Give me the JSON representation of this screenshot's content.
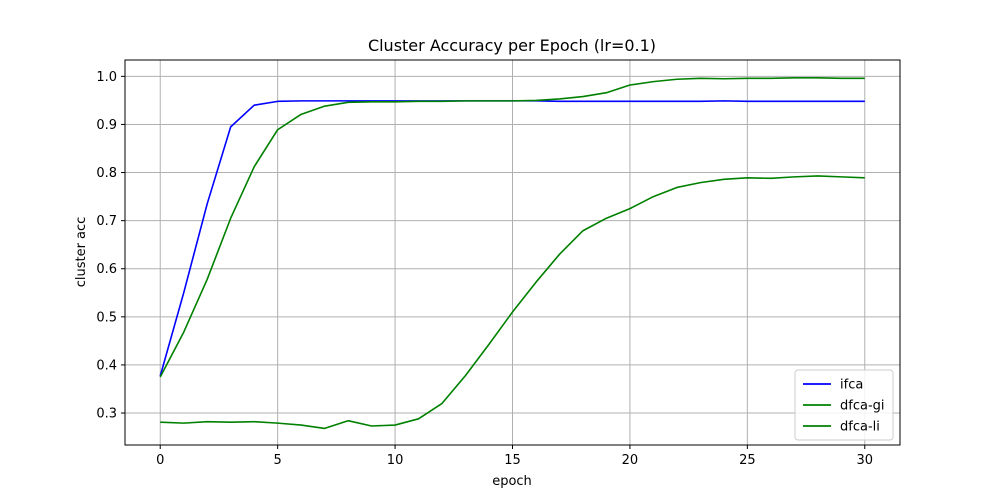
{
  "chart_data": {
    "type": "line",
    "title": "Cluster Accuracy per Epoch (lr=0.1)",
    "xlabel": "epoch",
    "ylabel": "cluster acc",
    "xlim": [
      -1.5,
      31.5
    ],
    "ylim": [
      0.2335,
      1.034
    ],
    "xticks": [
      0,
      5,
      10,
      15,
      20,
      25,
      30
    ],
    "yticks": [
      0.3,
      0.4,
      0.5,
      0.6,
      0.7,
      0.8,
      0.9,
      1.0
    ],
    "ytick_labels": [
      "0.3",
      "0.4",
      "0.5",
      "0.6",
      "0.7",
      "0.8",
      "0.9",
      "1.0"
    ],
    "grid": true,
    "legend_position": "lower-right",
    "x": [
      0,
      1,
      2,
      3,
      4,
      5,
      6,
      7,
      8,
      9,
      10,
      11,
      12,
      13,
      14,
      15,
      16,
      17,
      18,
      19,
      20,
      21,
      22,
      23,
      24,
      25,
      26,
      27,
      28,
      29,
      30
    ],
    "series": [
      {
        "name": "ifca",
        "color": "#0000ff",
        "values": [
          0.377,
          0.55,
          0.735,
          0.895,
          0.94,
          0.948,
          0.949,
          0.949,
          0.949,
          0.949,
          0.949,
          0.949,
          0.949,
          0.949,
          0.949,
          0.949,
          0.949,
          0.948,
          0.948,
          0.948,
          0.948,
          0.948,
          0.948,
          0.948,
          0.949,
          0.948,
          0.948,
          0.948,
          0.948,
          0.948,
          0.948
        ]
      },
      {
        "name": "dfca-gi",
        "color": "#008000",
        "values": [
          0.375,
          0.468,
          0.578,
          0.705,
          0.812,
          0.889,
          0.921,
          0.938,
          0.946,
          0.947,
          0.947,
          0.948,
          0.948,
          0.949,
          0.949,
          0.949,
          0.95,
          0.953,
          0.958,
          0.966,
          0.982,
          0.989,
          0.994,
          0.996,
          0.995,
          0.996,
          0.996,
          0.997,
          0.997,
          0.996,
          0.996
        ]
      },
      {
        "name": "dfca-li",
        "color": "#008000",
        "values": [
          0.281,
          0.279,
          0.282,
          0.281,
          0.282,
          0.279,
          0.275,
          0.268,
          0.284,
          0.273,
          0.275,
          0.288,
          0.32,
          0.378,
          0.443,
          0.51,
          0.572,
          0.63,
          0.679,
          0.705,
          0.725,
          0.75,
          0.769,
          0.779,
          0.786,
          0.789,
          0.788,
          0.791,
          0.793,
          0.791,
          0.789
        ]
      }
    ]
  }
}
